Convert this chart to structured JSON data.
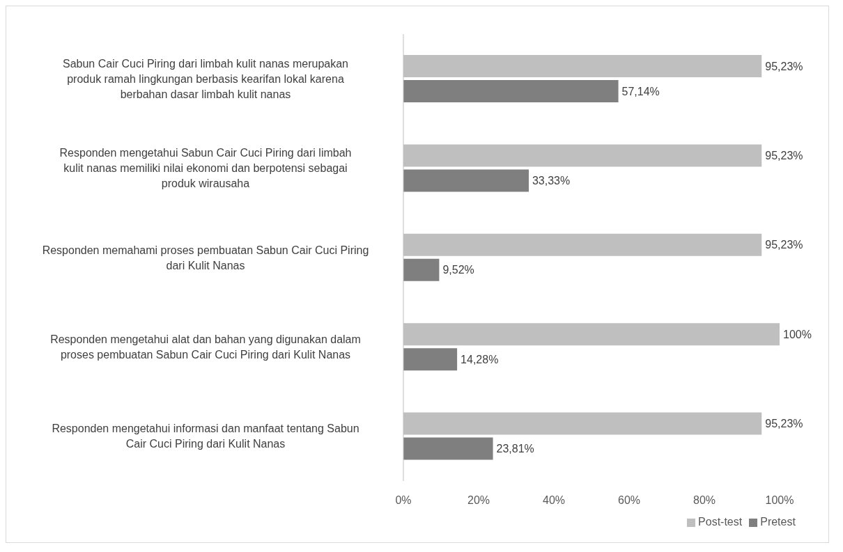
{
  "chart_data": {
    "type": "bar",
    "orientation": "horizontal",
    "categories": [
      "Sabun Cair Cuci Piring dari limbah kulit nanas merupakan produk ramah lingkungan berbasis kearifan lokal karena berbahan dasar limbah kulit nanas",
      "Responden mengetahui Sabun Cair Cuci Piring dari limbah kulit nanas memiliki nilai ekonomi dan berpotensi sebagai produk wirausaha",
      "Responden memahami proses pembuatan Sabun Cair Cuci Piring dari Kulit Nanas",
      "Responden mengetahui alat dan bahan yang digunakan dalam proses pembuatan Sabun Cair Cuci Piring dari Kulit Nanas",
      "Responden mengetahui informasi dan manfaat tentang Sabun Cair Cuci Piring dari Kulit Nanas"
    ],
    "series": [
      {
        "name": "Post-test",
        "color": "#bfbfbf",
        "values": [
          95.23,
          95.23,
          95.23,
          100,
          95.23
        ],
        "value_labels": [
          "95,23%",
          "95,23%",
          "95,23%",
          "100%",
          "95,23%"
        ]
      },
      {
        "name": "Pretest",
        "color": "#7f7f7f",
        "values": [
          57.14,
          33.33,
          9.52,
          14.28,
          23.81
        ],
        "value_labels": [
          "57,14%",
          "33,33%",
          "9,52%",
          "14,28%",
          "23,81%"
        ]
      }
    ],
    "xlim": [
      0,
      100
    ],
    "xticks": [
      {
        "value": 0,
        "label": "0%"
      },
      {
        "value": 20,
        "label": "20%"
      },
      {
        "value": 40,
        "label": "40%"
      },
      {
        "value": 60,
        "label": "60%"
      },
      {
        "value": 80,
        "label": "80%"
      },
      {
        "value": 100,
        "label": "100%"
      }
    ],
    "grid": false,
    "legend": "bottom"
  }
}
